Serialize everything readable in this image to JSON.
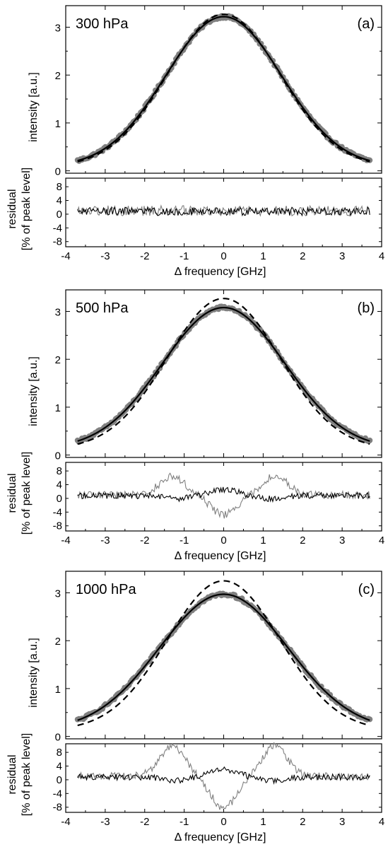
{
  "chart_data": [
    {
      "type": "scatter",
      "panel_label": "(a)",
      "pressure_label": "300 hPa",
      "xlabel": "Δ frequency [GHz]",
      "ylabel": "intensity [a.u.]",
      "residual_ylabel_line1": "residual",
      "residual_ylabel_line2": "[% of peak level]",
      "xlim": [
        -4,
        4
      ],
      "ylim": [
        -0.05,
        3.45
      ],
      "residual_ylim": [
        -9.5,
        10.5
      ],
      "x_ticks": [
        "-4",
        "-3",
        "-2",
        "-1",
        "0",
        "1",
        "2",
        "3",
        "4"
      ],
      "y_ticks": [
        "0",
        "1",
        "2",
        "3"
      ],
      "residual_ticks": [
        "8",
        "4",
        "0",
        "-4",
        "-8"
      ],
      "x_range": [
        -3.7,
        3.7
      ],
      "measured_peak": 3.22,
      "measured_baseline": 0.08,
      "measured_width_ghz": 1.47,
      "dashed_model_peak": 3.27,
      "dashed_model_width_ghz": 1.43,
      "residual_gray_amplitude": 1.0,
      "residual_black_amplitude": 0.8,
      "grid": false,
      "colors": {
        "data_points": "#808080",
        "fit": "#000000",
        "residual_gray": "#808080",
        "residual_black": "#000000"
      }
    },
    {
      "type": "scatter",
      "panel_label": "(b)",
      "pressure_label": "500 hPa",
      "xlabel": "Δ frequency [GHz]",
      "ylabel": "intensity [a.u.]",
      "residual_ylabel_line1": "residual",
      "residual_ylabel_line2": "[% of peak level]",
      "xlim": [
        -4,
        4
      ],
      "ylim": [
        -0.05,
        3.45
      ],
      "residual_ylim": [
        -9.5,
        10.5
      ],
      "x_ticks": [
        "-4",
        "-3",
        "-2",
        "-1",
        "0",
        "1",
        "2",
        "3",
        "4"
      ],
      "y_ticks": [
        "0",
        "1",
        "2",
        "3"
      ],
      "residual_ticks": [
        "8",
        "4",
        "0",
        "-4",
        "-8"
      ],
      "x_range": [
        -3.7,
        3.7
      ],
      "measured_peak": 3.08,
      "measured_baseline": 0.12,
      "measured_width_ghz": 1.55,
      "dashed_model_peak": 3.27,
      "dashed_model_width_ghz": 1.43,
      "residual_gray_amplitude": 5.5,
      "residual_black_amplitude": 2.5,
      "grid": false,
      "colors": {
        "data_points": "#808080",
        "fit": "#000000",
        "residual_gray": "#808080",
        "residual_black": "#000000"
      }
    },
    {
      "type": "scatter",
      "panel_label": "(c)",
      "pressure_label": "1000 hPa",
      "xlabel": "Δ frequency [GHz]",
      "ylabel": "intensity [a.u.]",
      "residual_ylabel_line1": "residual",
      "residual_ylabel_line2": "[% of peak level]",
      "xlim": [
        -4,
        4
      ],
      "ylim": [
        -0.05,
        3.45
      ],
      "residual_ylim": [
        -9.5,
        10.5
      ],
      "x_ticks": [
        "-4",
        "-3",
        "-2",
        "-1",
        "0",
        "1",
        "2",
        "3",
        "4"
      ],
      "y_ticks": [
        "0",
        "1",
        "2",
        "3"
      ],
      "residual_ticks": [
        "8",
        "4",
        "0",
        "-4",
        "-8"
      ],
      "x_range": [
        -3.7,
        3.7
      ],
      "measured_peak": 2.97,
      "measured_baseline": 0.12,
      "measured_width_ghz": 1.63,
      "dashed_model_peak": 3.25,
      "dashed_model_width_ghz": 1.43,
      "residual_gray_amplitude": 8.8,
      "residual_black_amplitude": 3.0,
      "grid": false,
      "colors": {
        "data_points": "#808080",
        "fit": "#000000",
        "residual_gray": "#808080",
        "residual_black": "#000000"
      }
    }
  ]
}
